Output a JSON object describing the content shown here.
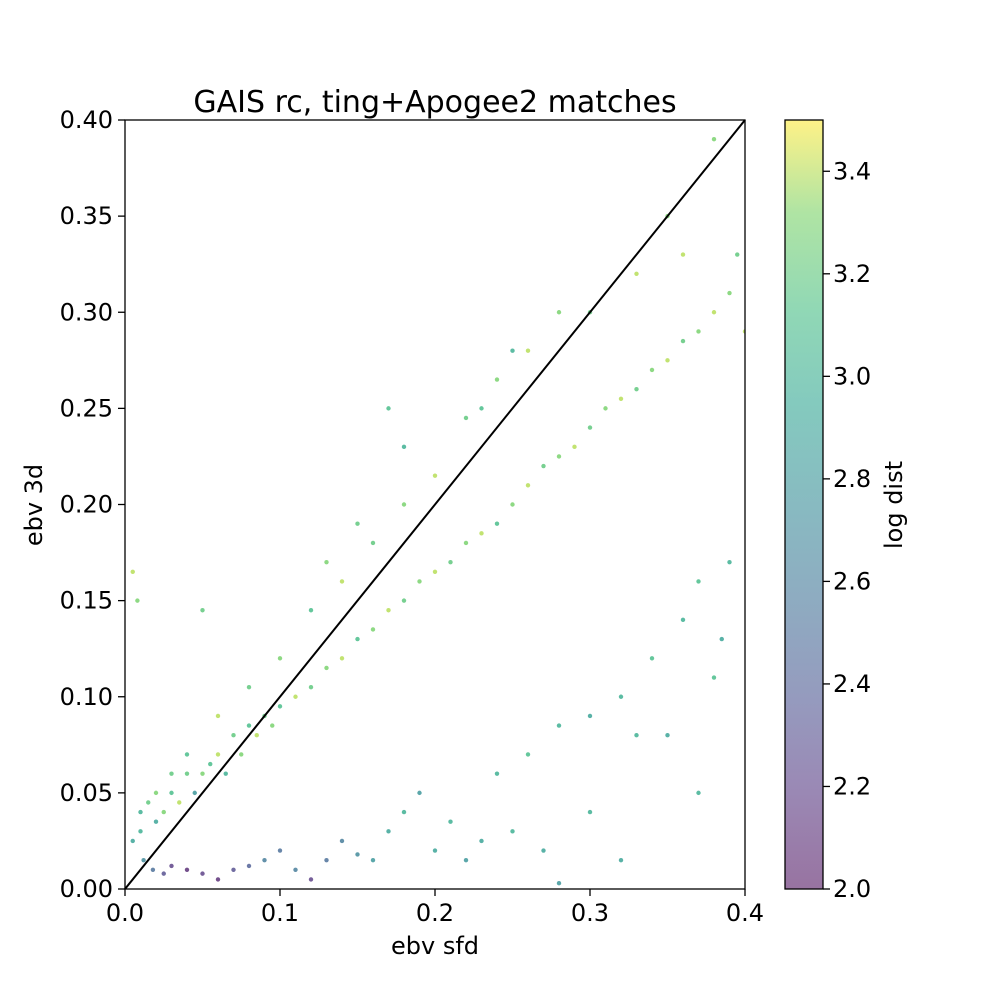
{
  "chart_data": {
    "type": "scatter",
    "title": "GAIS rc, ting+Apogee2 matches",
    "xlabel": "ebv sfd",
    "ylabel": "ebv 3d",
    "xlim": [
      0.0,
      0.4
    ],
    "ylim": [
      0.0,
      0.4
    ],
    "x_ticks": [
      "0.0",
      "0.1",
      "0.2",
      "0.3",
      "0.4"
    ],
    "y_ticks": [
      "0.00",
      "0.05",
      "0.10",
      "0.15",
      "0.20",
      "0.25",
      "0.30",
      "0.35",
      "0.40"
    ],
    "grid": false,
    "reference_line": {
      "x": [
        0.0,
        0.4
      ],
      "y": [
        0.0,
        0.4
      ],
      "color": "#000000"
    },
    "colorbar": {
      "label": "log dist",
      "range": [
        2.0,
        3.5
      ],
      "ticks": [
        "2.0",
        "2.2",
        "2.4",
        "2.6",
        "2.8",
        "3.0",
        "3.2",
        "3.4"
      ],
      "colormap": "viridis"
    },
    "points": [
      [
        0.01,
        0.03,
        3.0
      ],
      [
        0.015,
        0.045,
        3.2
      ],
      [
        0.02,
        0.035,
        2.9
      ],
      [
        0.025,
        0.04,
        3.3
      ],
      [
        0.03,
        0.05,
        3.1
      ],
      [
        0.035,
        0.045,
        3.4
      ],
      [
        0.04,
        0.06,
        3.2
      ],
      [
        0.045,
        0.05,
        2.8
      ],
      [
        0.05,
        0.06,
        3.3
      ],
      [
        0.055,
        0.065,
        3.1
      ],
      [
        0.06,
        0.07,
        3.4
      ],
      [
        0.065,
        0.06,
        3.0
      ],
      [
        0.07,
        0.08,
        3.2
      ],
      [
        0.075,
        0.07,
        3.3
      ],
      [
        0.08,
        0.085,
        3.1
      ],
      [
        0.085,
        0.08,
        3.4
      ],
      [
        0.09,
        0.09,
        3.2
      ],
      [
        0.095,
        0.085,
        3.3
      ],
      [
        0.1,
        0.095,
        3.1
      ],
      [
        0.11,
        0.1,
        3.4
      ],
      [
        0.12,
        0.105,
        3.2
      ],
      [
        0.13,
        0.115,
        3.3
      ],
      [
        0.14,
        0.12,
        3.4
      ],
      [
        0.15,
        0.13,
        3.1
      ],
      [
        0.16,
        0.135,
        3.3
      ],
      [
        0.17,
        0.145,
        3.4
      ],
      [
        0.18,
        0.15,
        3.2
      ],
      [
        0.19,
        0.16,
        3.3
      ],
      [
        0.2,
        0.165,
        3.4
      ],
      [
        0.21,
        0.17,
        3.2
      ],
      [
        0.22,
        0.18,
        3.3
      ],
      [
        0.23,
        0.185,
        3.4
      ],
      [
        0.24,
        0.19,
        3.1
      ],
      [
        0.25,
        0.2,
        3.3
      ],
      [
        0.26,
        0.21,
        3.4
      ],
      [
        0.27,
        0.22,
        3.2
      ],
      [
        0.28,
        0.225,
        3.3
      ],
      [
        0.29,
        0.23,
        3.4
      ],
      [
        0.3,
        0.24,
        3.2
      ],
      [
        0.31,
        0.25,
        3.3
      ],
      [
        0.32,
        0.255,
        3.4
      ],
      [
        0.33,
        0.26,
        3.2
      ],
      [
        0.34,
        0.27,
        3.3
      ],
      [
        0.35,
        0.275,
        3.4
      ],
      [
        0.36,
        0.285,
        3.2
      ],
      [
        0.37,
        0.29,
        3.3
      ],
      [
        0.38,
        0.3,
        3.4
      ],
      [
        0.39,
        0.31,
        3.3
      ],
      [
        0.4,
        0.29,
        3.4
      ],
      [
        0.38,
        0.39,
        3.3
      ],
      [
        0.395,
        0.33,
        3.2
      ],
      [
        0.36,
        0.33,
        3.4
      ],
      [
        0.35,
        0.35,
        3.3
      ],
      [
        0.33,
        0.32,
        3.4
      ],
      [
        0.3,
        0.3,
        3.2
      ],
      [
        0.28,
        0.3,
        3.3
      ],
      [
        0.26,
        0.28,
        3.4
      ],
      [
        0.24,
        0.265,
        3.3
      ],
      [
        0.22,
        0.245,
        3.2
      ],
      [
        0.2,
        0.215,
        3.4
      ],
      [
        0.18,
        0.2,
        3.3
      ],
      [
        0.16,
        0.18,
        3.2
      ],
      [
        0.14,
        0.16,
        3.4
      ],
      [
        0.12,
        0.145,
        3.1
      ],
      [
        0.1,
        0.12,
        3.3
      ],
      [
        0.08,
        0.105,
        3.2
      ],
      [
        0.06,
        0.09,
        3.4
      ],
      [
        0.04,
        0.07,
        3.1
      ],
      [
        0.03,
        0.06,
        3.2
      ],
      [
        0.02,
        0.05,
        3.3
      ],
      [
        0.01,
        0.04,
        3.0
      ],
      [
        0.005,
        0.025,
        2.9
      ],
      [
        0.012,
        0.015,
        2.7
      ],
      [
        0.018,
        0.01,
        2.5
      ],
      [
        0.025,
        0.008,
        2.3
      ],
      [
        0.03,
        0.012,
        2.2
      ],
      [
        0.04,
        0.01,
        2.1
      ],
      [
        0.05,
        0.008,
        2.2
      ],
      [
        0.06,
        0.005,
        2.1
      ],
      [
        0.07,
        0.01,
        2.3
      ],
      [
        0.08,
        0.012,
        2.4
      ],
      [
        0.09,
        0.015,
        2.6
      ],
      [
        0.1,
        0.02,
        2.5
      ],
      [
        0.11,
        0.01,
        2.6
      ],
      [
        0.12,
        0.005,
        2.2
      ],
      [
        0.13,
        0.015,
        2.5
      ],
      [
        0.14,
        0.025,
        2.6
      ],
      [
        0.15,
        0.018,
        2.7
      ],
      [
        0.16,
        0.015,
        2.8
      ],
      [
        0.17,
        0.03,
        2.9
      ],
      [
        0.18,
        0.04,
        3.0
      ],
      [
        0.19,
        0.05,
        2.8
      ],
      [
        0.2,
        0.02,
        2.9
      ],
      [
        0.21,
        0.035,
        3.0
      ],
      [
        0.22,
        0.015,
        2.8
      ],
      [
        0.23,
        0.025,
        2.9
      ],
      [
        0.25,
        0.03,
        3.0
      ],
      [
        0.27,
        0.02,
        2.9
      ],
      [
        0.28,
        0.003,
        2.8
      ],
      [
        0.3,
        0.04,
        3.0
      ],
      [
        0.32,
        0.015,
        2.9
      ],
      [
        0.33,
        0.08,
        3.0
      ],
      [
        0.35,
        0.08,
        2.9
      ],
      [
        0.37,
        0.05,
        3.0
      ],
      [
        0.38,
        0.11,
        3.1
      ],
      [
        0.385,
        0.13,
        2.9
      ],
      [
        0.39,
        0.17,
        3.0
      ],
      [
        0.37,
        0.16,
        3.1
      ],
      [
        0.36,
        0.14,
        3.0
      ],
      [
        0.34,
        0.12,
        3.1
      ],
      [
        0.32,
        0.1,
        3.0
      ],
      [
        0.3,
        0.09,
        2.9
      ],
      [
        0.28,
        0.085,
        3.0
      ],
      [
        0.26,
        0.07,
        3.1
      ],
      [
        0.24,
        0.06,
        3.0
      ],
      [
        0.005,
        0.165,
        3.4
      ],
      [
        0.008,
        0.15,
        3.3
      ],
      [
        0.05,
        0.145,
        3.2
      ],
      [
        0.25,
        0.28,
        3.0
      ],
      [
        0.23,
        0.25,
        3.1
      ],
      [
        0.18,
        0.23,
        3.0
      ],
      [
        0.15,
        0.19,
        3.2
      ],
      [
        0.17,
        0.25,
        3.1
      ],
      [
        0.13,
        0.17,
        3.3
      ]
    ]
  }
}
